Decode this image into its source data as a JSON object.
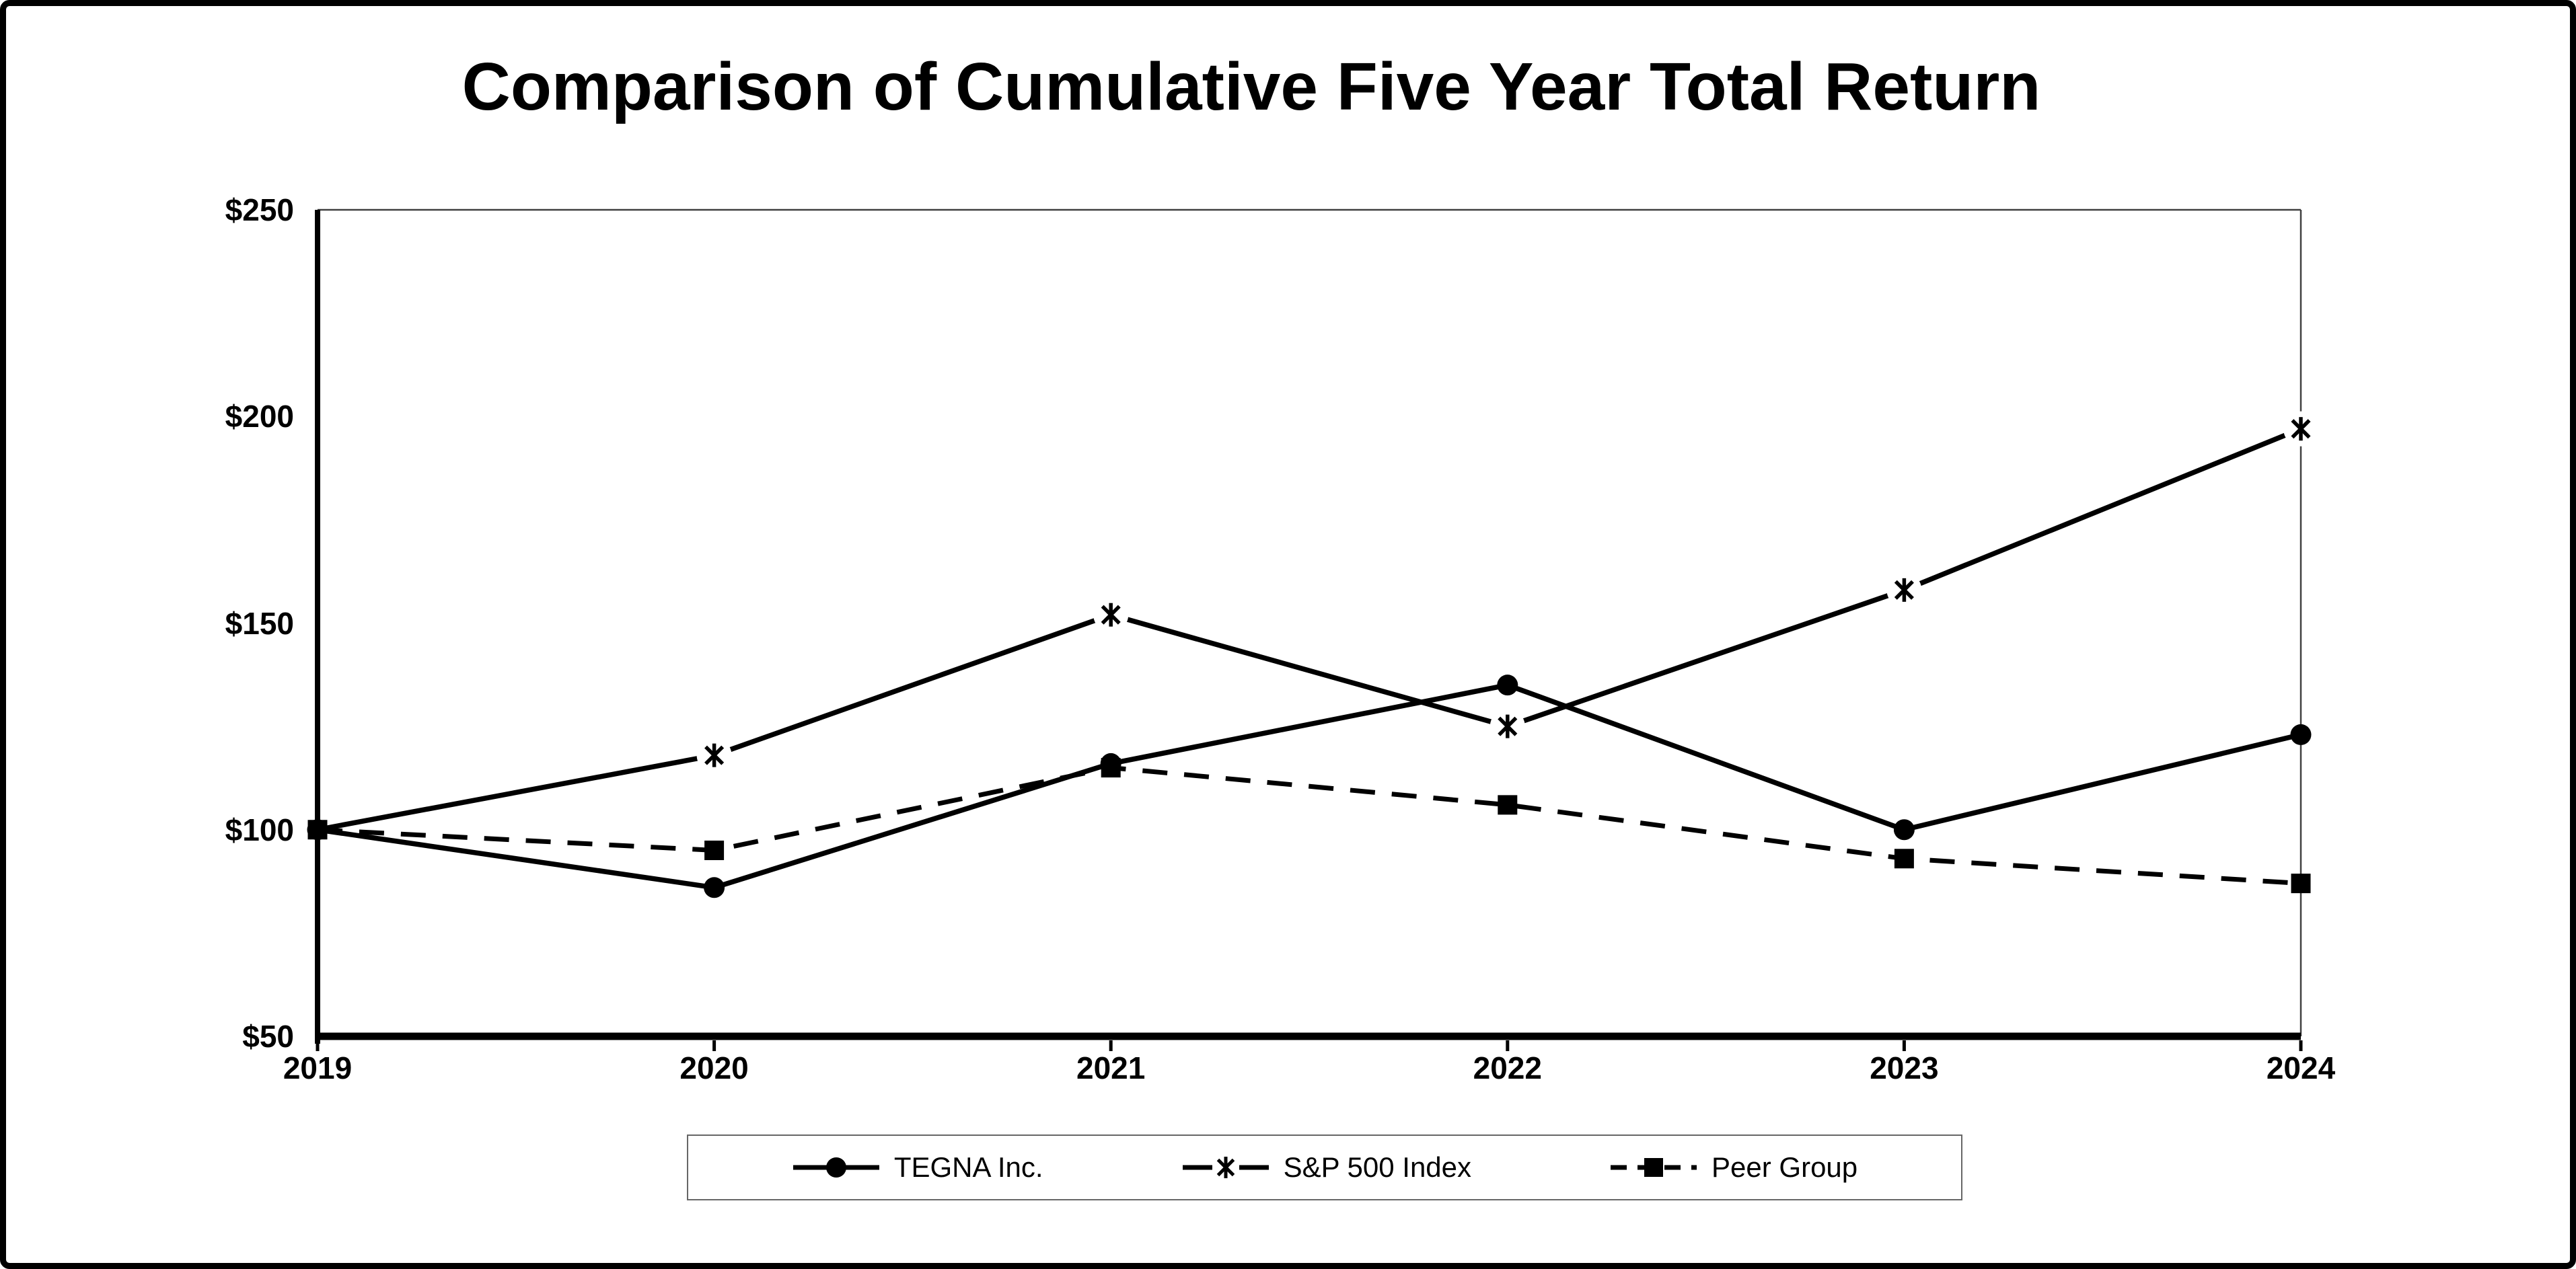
{
  "title": "Comparison of Cumulative Five Year Total Return",
  "colors": {
    "series_line": "#000000",
    "background": "#ffffff",
    "plot_frame_border": "#404040",
    "legend_border": "#666666",
    "outer_border": "#000000",
    "text": "#000000"
  },
  "chart_data": {
    "type": "line",
    "title": "Comparison of Cumulative Five Year Total Return",
    "categories": [
      "2019",
      "2020",
      "2021",
      "2022",
      "2023",
      "2024"
    ],
    "series": [
      {
        "name": "TEGNA Inc.",
        "marker": "circle",
        "line_style": "solid",
        "values": [
          100,
          86,
          116,
          135,
          100,
          123
        ]
      },
      {
        "name": "S&P 500 Index",
        "marker": "asterisk",
        "line_style": "solid",
        "values": [
          100,
          118,
          152,
          125,
          158,
          197
        ]
      },
      {
        "name": "Peer Group",
        "marker": "square",
        "line_style": "dashed",
        "values": [
          100,
          95,
          115,
          106,
          93,
          87
        ]
      }
    ],
    "y_tick_labels": [
      "$250",
      "$200",
      "$150",
      "$100",
      "$50"
    ],
    "y_tick_values": [
      250,
      200,
      150,
      100,
      50
    ],
    "ylim": [
      50,
      250
    ],
    "xlabel": "",
    "ylabel": "",
    "grid": false,
    "legend_position": "bottom-center"
  }
}
